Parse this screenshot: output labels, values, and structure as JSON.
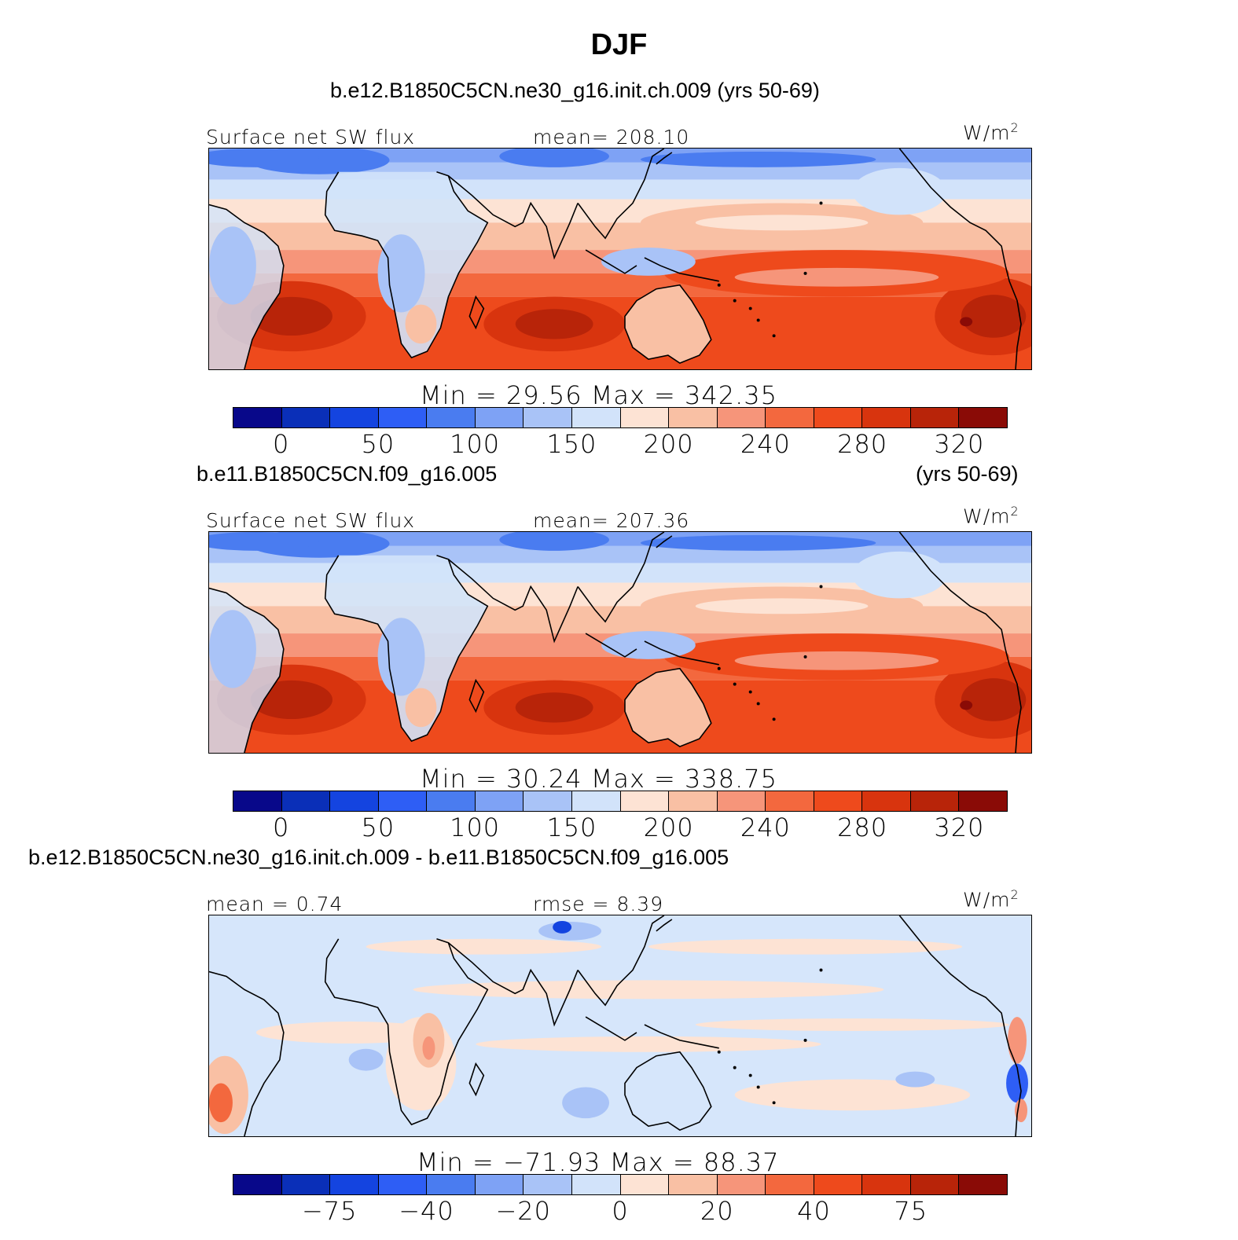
{
  "title": "DJF",
  "panels": [
    {
      "case": "b.e12.B1850C5CN.ne30_g16.init.ch.009 (yrs 50-69)",
      "case_extra": "",
      "left_label": "Surface net SW flux",
      "center_label": "mean= 208.10",
      "units": "W/m",
      "units_sup": "2",
      "minmax": "Min =   29.56  Max =  342.35",
      "ticks": [
        "0",
        "50",
        "100",
        "150",
        "200",
        "240",
        "280",
        "320"
      ],
      "field": "abs"
    },
    {
      "case": "b.e11.B1850C5CN.f09_g16.005",
      "case_extra": "(yrs 50-69)",
      "left_label": "Surface net SW flux",
      "center_label": "mean= 207.36",
      "units": "W/m",
      "units_sup": "2",
      "minmax": "Min =   30.24  Max =  338.75",
      "ticks": [
        "0",
        "50",
        "100",
        "150",
        "200",
        "240",
        "280",
        "320"
      ],
      "field": "abs"
    },
    {
      "case": "b.e12.B1850C5CN.ne30_g16.init.ch.009 - b.e11.B1850C5CN.f09_g16.005",
      "case_extra": "",
      "left_label": "mean =    0.74",
      "center_label": "rmse =    8.39",
      "units": "W/m",
      "units_sup": "2",
      "minmax": "Min = −71.93  Max =   88.37",
      "ticks": [
        "−75",
        "−40",
        "−20",
        "0",
        "20",
        "40",
        "75"
      ],
      "field": "diff"
    }
  ],
  "colors": {
    "palette": [
      "#08088a",
      "#0a2fb8",
      "#1444e0",
      "#2e5ef5",
      "#4a7cf0",
      "#7ea2f5",
      "#a9c3f7",
      "#d2e3fa",
      "#fde3d4",
      "#f9c0a4",
      "#f6957a",
      "#f3683e",
      "#ee4a1c",
      "#d8340e",
      "#b82409",
      "#8a0b06"
    ],
    "coast": "#000000",
    "diff_background": "#d6e6fb"
  }
}
